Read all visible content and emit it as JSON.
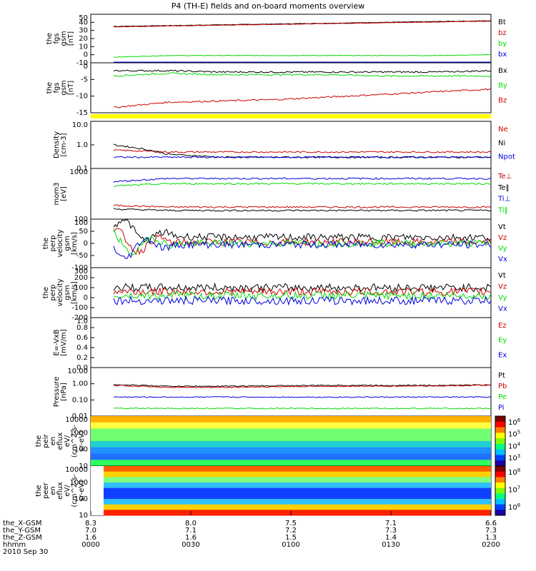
{
  "title": "P4 (TH-E) fields and on-board moments overview",
  "colors": {
    "black": "#000000",
    "red": "#cc0000",
    "green": "#00dd00",
    "blue": "#0000dd",
    "yellow": "#ffff00"
  },
  "chart_data": [
    {
      "type": "line",
      "panel": "fgs-gsm",
      "ylabel": [
        "the",
        "fgs",
        "gsm",
        "[nT]"
      ],
      "yticks": [
        "50",
        "40",
        "30",
        "20",
        "10",
        "0",
        "-10"
      ],
      "ylim": [
        -10,
        50
      ],
      "legend": [
        {
          "label": "Bt",
          "color": "black"
        },
        {
          "label": "bz",
          "color": "red"
        },
        {
          "label": "by",
          "color": "green"
        },
        {
          "label": "bx",
          "color": "blue"
        }
      ],
      "series": [
        {
          "name": "Bt",
          "values": [
            35,
            36,
            37,
            38,
            39,
            40,
            41,
            42
          ]
        },
        {
          "name": "bz",
          "values": [
            34.5,
            35.5,
            36.5,
            37.5,
            38.5,
            39.5,
            40.5,
            41.5
          ]
        },
        {
          "name": "by",
          "values": [
            -3,
            -1,
            -1,
            -1,
            -1,
            -1,
            -1,
            0
          ]
        },
        {
          "name": "bx",
          "values": [
            -10,
            -10,
            -10,
            -10,
            -10,
            -10,
            -10,
            -10
          ]
        }
      ]
    },
    {
      "type": "line",
      "panel": "fgs-gsm-detail",
      "ylabel": [
        "the",
        "fgs",
        "gsm",
        "[nT]"
      ],
      "yticks": [
        "0",
        "-5",
        "-10",
        "-15"
      ],
      "ylim": [
        -17,
        2
      ],
      "legend": [
        {
          "label": "Bx",
          "color": "black"
        },
        {
          "label": "By",
          "color": "green"
        },
        {
          "label": "Bz",
          "color": "red"
        }
      ],
      "series": [
        {
          "name": "Bx",
          "values": [
            -1,
            -1,
            -1.5,
            -1.5,
            -1.5,
            -1.5,
            -1.5,
            -1
          ]
        },
        {
          "name": "By",
          "values": [
            -3,
            -2,
            -2.5,
            -2.5,
            -2.5,
            -3,
            -3,
            -3
          ]
        },
        {
          "name": "Bz",
          "values": [
            -15,
            -13,
            -12.5,
            -12,
            -11,
            -10,
            -9,
            -8
          ]
        }
      ]
    },
    {
      "type": "line",
      "panel": "density",
      "scale": "log",
      "ylabel": [
        "Density",
        "[cm-3]"
      ],
      "yticks": [
        "10.0",
        "1.0",
        "0.1"
      ],
      "ylim": [
        0.1,
        10
      ],
      "legend": [
        {
          "label": "Ne",
          "color": "red"
        },
        {
          "label": "Ni",
          "color": "black"
        },
        {
          "label": "Npot",
          "color": "blue"
        }
      ],
      "series": [
        {
          "name": "Ne",
          "values": [
            0.6,
            0.5,
            0.5,
            0.5,
            0.5,
            0.5,
            0.5,
            0.5
          ]
        },
        {
          "name": "Ni",
          "values": [
            1.0,
            0.4,
            0.3,
            0.3,
            0.3,
            0.3,
            0.3,
            0.3
          ]
        },
        {
          "name": "Npot",
          "values": [
            0.3,
            0.3,
            0.3,
            0.3,
            0.3,
            0.3,
            0.3,
            0.3
          ]
        }
      ]
    },
    {
      "type": "line",
      "panel": "temperature",
      "scale": "log",
      "ylabel": [
        "mom3",
        "[eV]"
      ],
      "yticks": [
        "1000",
        "100"
      ],
      "legend": [
        {
          "label": "Te⊥",
          "color": "red"
        },
        {
          "label": "Te‖",
          "color": "black"
        },
        {
          "label": "Ti⊥",
          "color": "blue"
        },
        {
          "label": "Ti‖",
          "color": "green"
        }
      ],
      "series": [
        {
          "name": "Te⊥",
          "values": [
            350,
            300,
            300,
            300,
            300,
            300,
            300,
            300
          ]
        },
        {
          "name": "Te‖",
          "values": [
            250,
            220,
            220,
            220,
            220,
            220,
            220,
            220
          ]
        },
        {
          "name": "Ti⊥",
          "values": [
            3000,
            4000,
            4000,
            4000,
            4000,
            4000,
            4000,
            4000
          ]
        },
        {
          "name": "Ti‖",
          "values": [
            2000,
            2500,
            2500,
            2500,
            2500,
            2500,
            2500,
            2500
          ]
        }
      ]
    },
    {
      "type": "line",
      "panel": "perp-velocity",
      "ylabel": [
        "the",
        "perp",
        "velocity",
        "gsm",
        "[km/s]"
      ],
      "yticks": [
        "100",
        "50",
        "0",
        "-50",
        "-100"
      ],
      "ylim": [
        -100,
        100
      ],
      "legend": [
        {
          "label": "Vt",
          "color": "black"
        },
        {
          "label": "Vz",
          "color": "red"
        },
        {
          "label": "Vy",
          "color": "green"
        },
        {
          "label": "Vx",
          "color": "blue"
        }
      ],
      "series": [
        {
          "name": "Vt",
          "values": [
            60,
            30,
            25,
            25,
            25,
            25,
            25,
            25
          ]
        },
        {
          "name": "Vz",
          "values": [
            0,
            5,
            5,
            5,
            5,
            5,
            5,
            5
          ]
        },
        {
          "name": "Vy",
          "values": [
            0,
            0,
            0,
            0,
            0,
            0,
            0,
            0
          ]
        },
        {
          "name": "Vx",
          "values": [
            -20,
            -5,
            -5,
            -5,
            -5,
            -5,
            -5,
            -5
          ]
        }
      ]
    },
    {
      "type": "line",
      "panel": "velocity",
      "ylabel": [
        "the",
        "perp",
        "velocity",
        "gsm",
        "[km/s]"
      ],
      "yticks": [
        "300",
        "200",
        "100",
        "0",
        "-100",
        "-200"
      ],
      "ylim": [
        -200,
        300
      ],
      "legend": [
        {
          "label": "Vt",
          "color": "black"
        },
        {
          "label": "Vz",
          "color": "red"
        },
        {
          "label": "Vy",
          "color": "green"
        },
        {
          "label": "Vx",
          "color": "blue"
        }
      ],
      "series": [
        {
          "name": "Vt",
          "values": [
            100,
            100,
            100,
            100,
            100,
            100,
            100,
            100
          ]
        },
        {
          "name": "Vz",
          "values": [
            60,
            60,
            60,
            60,
            60,
            60,
            60,
            60
          ]
        },
        {
          "name": "Vy",
          "values": [
            20,
            20,
            20,
            20,
            20,
            20,
            20,
            20
          ]
        },
        {
          "name": "Vx",
          "values": [
            -30,
            -30,
            -30,
            -30,
            -30,
            -30,
            -30,
            -30
          ]
        }
      ]
    },
    {
      "type": "line",
      "panel": "efield",
      "ylabel": [
        "E=-VxB",
        "[mV/m]"
      ],
      "yticks": [
        "1.0",
        "0.8",
        "0.6",
        "0.4",
        "0.2",
        "0.0"
      ],
      "ylim": [
        0,
        1
      ],
      "legend": [
        {
          "label": "Ez",
          "color": "red"
        },
        {
          "label": "Ey",
          "color": "green"
        },
        {
          "label": "Ex",
          "color": "blue"
        }
      ],
      "series": []
    },
    {
      "type": "line",
      "panel": "pressure",
      "scale": "log",
      "ylabel": [
        "Pressure",
        "[nPa]"
      ],
      "yticks": [
        "10.00",
        "1.00",
        "0.10",
        "0.01"
      ],
      "ylim": [
        0.01,
        10
      ],
      "legend": [
        {
          "label": "Pt",
          "color": "black"
        },
        {
          "label": "Pb",
          "color": "red"
        },
        {
          "label": "Pe",
          "color": "green"
        },
        {
          "label": "Pi",
          "color": "blue"
        }
      ],
      "series": [
        {
          "name": "Pt",
          "values": [
            0.9,
            0.7,
            0.7,
            0.75,
            0.8,
            0.8,
            0.8,
            0.85
          ]
        },
        {
          "name": "Pb",
          "values": [
            0.8,
            0.6,
            0.6,
            0.65,
            0.7,
            0.7,
            0.75,
            0.8
          ]
        },
        {
          "name": "Pe",
          "values": [
            0.03,
            0.03,
            0.03,
            0.03,
            0.03,
            0.03,
            0.03,
            0.03
          ]
        },
        {
          "name": "Pi",
          "values": [
            0.15,
            0.15,
            0.15,
            0.15,
            0.15,
            0.15,
            0.15,
            0.15
          ]
        }
      ]
    },
    {
      "type": "heatmap",
      "panel": "ion-spectrogram",
      "ylabel": [
        "the",
        "peir",
        "en",
        "eflux",
        "eV/",
        "(cm^2-s-",
        "sr-eV)"
      ],
      "yticks": [
        "10000",
        "1000",
        "100",
        "10"
      ],
      "colorbar_ticks": [
        "10^6",
        "10^5",
        "10^4",
        "10^3"
      ]
    },
    {
      "type": "heatmap",
      "panel": "electron-spectrogram",
      "ylabel": [
        "the",
        "peer",
        "en",
        "eflux",
        "eV/",
        "(cm^2-s-",
        "sr-eV)"
      ],
      "yticks": [
        "10000",
        "1000",
        "100",
        "10"
      ],
      "colorbar_ticks": [
        "10^8",
        "10^7",
        "10^6"
      ]
    }
  ],
  "xaxis": {
    "row_labels": [
      "the_X-GSM",
      "the_Y-GSM",
      "the_Z-GSM",
      "hhmm",
      "2010 Sep 30"
    ],
    "ticks": [
      {
        "x": "8.3",
        "y": "7.0",
        "z": "1.6",
        "t": "0000"
      },
      {
        "x": "8.0",
        "y": "7.1",
        "z": "1.6",
        "t": "0030"
      },
      {
        "x": "7.5",
        "y": "7.2",
        "z": "1.5",
        "t": "0100"
      },
      {
        "x": "7.1",
        "y": "7.3",
        "z": "1.4",
        "t": "0130"
      },
      {
        "x": "6.6",
        "y": "7.3",
        "z": "1.3",
        "t": "0200"
      }
    ]
  }
}
